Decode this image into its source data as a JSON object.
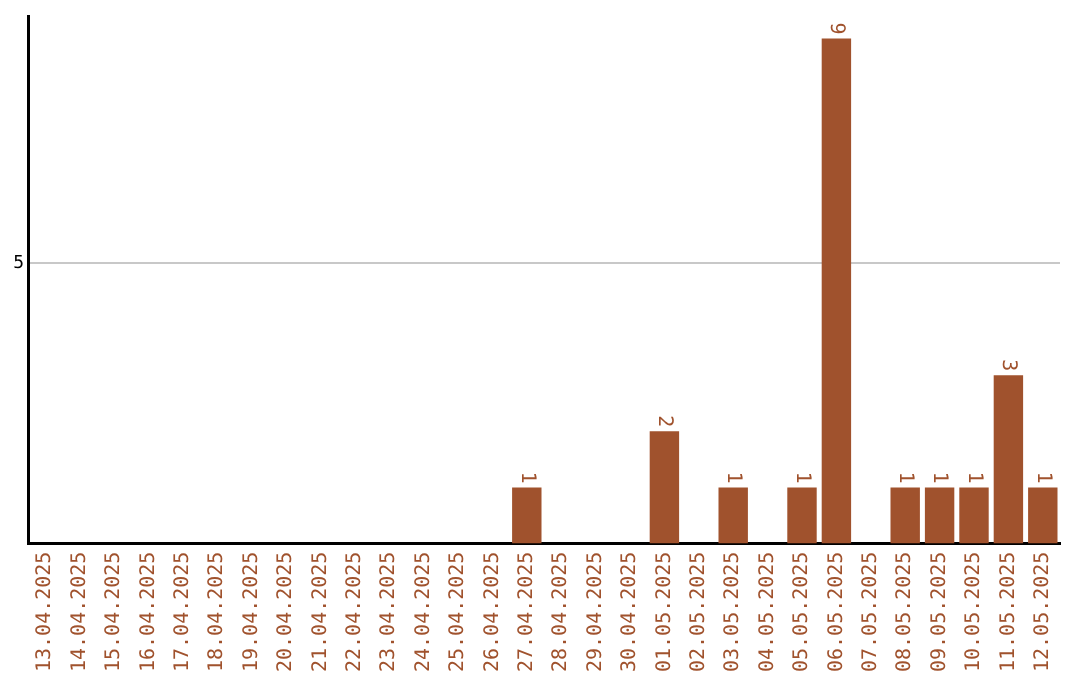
{
  "chart_data": {
    "type": "bar",
    "categories": [
      "13.04.2025",
      "14.04.2025",
      "15.04.2025",
      "16.04.2025",
      "17.04.2025",
      "18.04.2025",
      "19.04.2025",
      "20.04.2025",
      "21.04.2025",
      "22.04.2025",
      "23.04.2025",
      "24.04.2025",
      "25.04.2025",
      "26.04.2025",
      "27.04.2025",
      "28.04.2025",
      "29.04.2025",
      "30.04.2025",
      "01.05.2025",
      "02.05.2025",
      "03.05.2025",
      "04.05.2025",
      "05.05.2025",
      "06.05.2025",
      "07.05.2025",
      "08.05.2025",
      "09.05.2025",
      "10.05.2025",
      "11.05.2025",
      "12.05.2025"
    ],
    "values": [
      null,
      null,
      null,
      null,
      null,
      null,
      null,
      null,
      null,
      null,
      null,
      null,
      null,
      null,
      1,
      null,
      null,
      null,
      2,
      null,
      1,
      null,
      1,
      9,
      null,
      1,
      1,
      1,
      3,
      1
    ],
    "data_labels": true,
    "color": "#a0522d",
    "ylim": [
      0,
      9.4
    ],
    "yticks": [
      5
    ],
    "grid": "y",
    "legend": false
  }
}
